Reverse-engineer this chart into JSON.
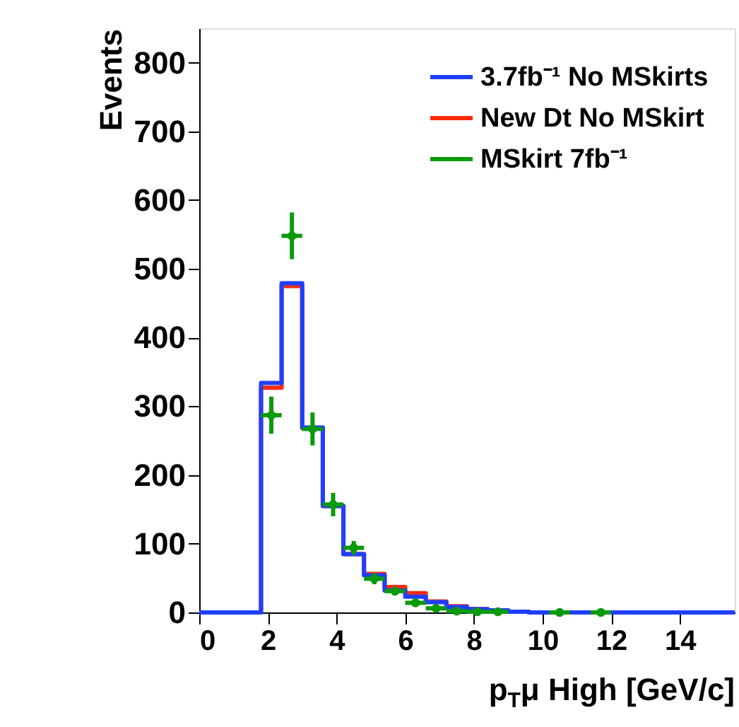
{
  "chart_data": {
    "type": "histogram",
    "xlabel": "p$_{T}$μ High [GeV/c]",
    "ylabel": "Events",
    "bins": [
      0,
      0.6,
      1.2,
      1.8,
      2.4,
      3.0,
      3.6,
      4.2,
      4.8,
      5.4,
      6.0,
      6.6,
      7.2,
      7.8,
      8.4,
      9.0,
      9.6,
      10.2,
      10.8,
      11.4,
      12.0,
      12.6,
      13.2,
      13.8,
      14.4,
      15.0,
      15.6
    ],
    "series": [
      {
        "name": "3.7fb⁻¹ No MSkirts",
        "color": "#1f3fff",
        "values": [
          0,
          0,
          0,
          334,
          479,
          269,
          155,
          85,
          54,
          32,
          23,
          15,
          8,
          5,
          3,
          1,
          0,
          0,
          0,
          0,
          0,
          0,
          0,
          0,
          0,
          0
        ]
      },
      {
        "name": "New Dt No MSkirt",
        "color": "#ff2a0a",
        "values": [
          0,
          0,
          0,
          327,
          475,
          268,
          155,
          85,
          56,
          37,
          28,
          16,
          9,
          5,
          3,
          1,
          0,
          0,
          0,
          0,
          0,
          0,
          0,
          0,
          0,
          0
        ]
      },
      {
        "name": "MSkirt 7fb⁻¹",
        "color": "#0a9a0a",
        "type": "scatter",
        "marker": "circle",
        "x": [
          2.1,
          2.7,
          3.3,
          3.9,
          4.5,
          5.1,
          5.7,
          6.3,
          6.9,
          7.5,
          8.1,
          8.7,
          10.5,
          11.7
        ],
        "values": [
          287,
          548,
          267,
          157,
          94,
          49,
          31,
          14,
          6,
          2,
          1,
          1,
          0,
          0
        ],
        "errors": [
          27,
          34,
          24,
          17,
          10,
          8,
          6,
          4,
          null,
          null,
          null,
          null,
          null,
          null
        ],
        "xerrors": [
          0.3,
          0.3,
          0.3,
          0.3,
          0.3,
          0.3,
          0.3,
          0.3,
          0.3,
          0.3,
          0.3,
          0.3,
          0.3,
          0.3
        ]
      }
    ],
    "xlim": [
      0,
      15.6
    ],
    "ylim": [
      0,
      850
    ],
    "xticks": [
      0,
      2,
      4,
      6,
      8,
      10,
      12,
      14
    ],
    "yticks": [
      0,
      100,
      200,
      300,
      400,
      500,
      600,
      700,
      800
    ],
    "grid": false,
    "legend": "top right"
  }
}
